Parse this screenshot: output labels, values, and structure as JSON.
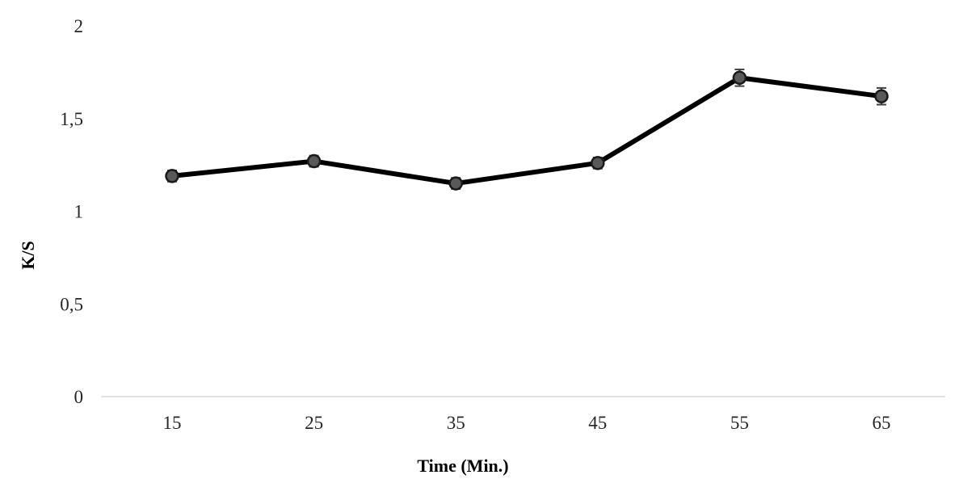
{
  "chart_data": {
    "type": "line",
    "x": [
      15,
      25,
      35,
      45,
      55,
      65
    ],
    "series": [
      {
        "values": [
          1.19,
          1.27,
          1.15,
          1.26,
          1.72,
          1.62
        ],
        "error": [
          0.03,
          0.03,
          0.03,
          0.03,
          0.045,
          0.045
        ]
      }
    ],
    "xlabel": "Time (Min.)",
    "ylabel": "K/S",
    "x_tick_labels": [
      "15",
      "25",
      "35",
      "45",
      "55",
      "65"
    ],
    "y_tick_labels": [
      "0",
      "0,5",
      "1",
      "1,5",
      "2"
    ],
    "y_ticks": [
      0,
      0.5,
      1,
      1.5,
      2
    ],
    "ylim": [
      0,
      2
    ],
    "grid": false,
    "legend": "none",
    "colors": {
      "line": "#000000",
      "marker_fill": "#595959",
      "marker_stroke": "#1a1a1a",
      "axis": "#d9d9d9",
      "tick_text": "#262626",
      "error_bar": "#404040"
    }
  }
}
